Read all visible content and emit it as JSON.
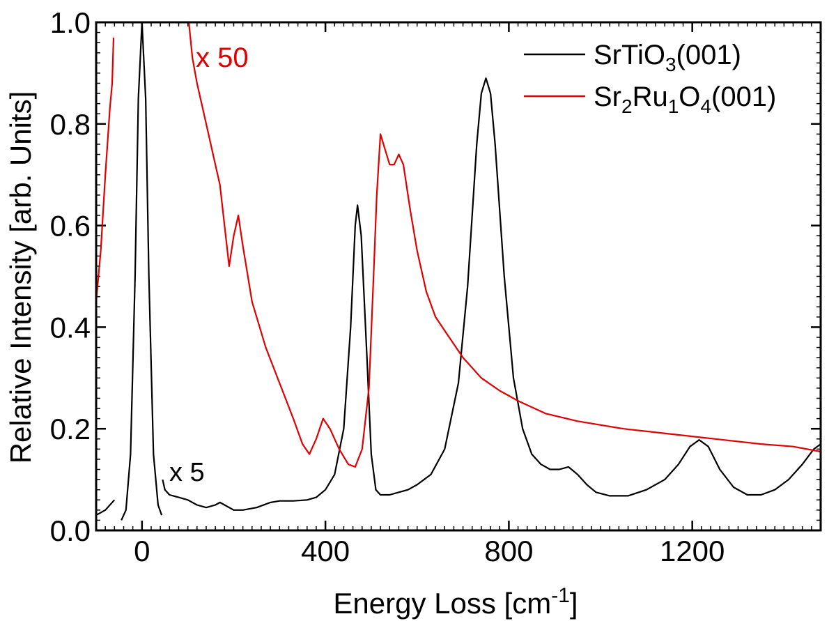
{
  "chart_data": {
    "type": "line",
    "xlabel_main": "Energy Loss [cm",
    "xlabel_sup": "-1",
    "xlabel_end": "]",
    "ylabel": "Relative Intensity [arb. Units]",
    "xlim": [
      -100,
      1480
    ],
    "ylim": [
      0.0,
      1.0
    ],
    "x_ticks": [
      0,
      400,
      800,
      1200
    ],
    "x_tick_labels": [
      "0",
      "400",
      "800",
      "1200"
    ],
    "y_ticks": [
      0.0,
      0.2,
      0.4,
      0.6,
      0.8,
      1.0
    ],
    "y_tick_labels": [
      "0.0",
      "0.2",
      "0.4",
      "0.6",
      "0.8",
      "1.0"
    ],
    "legend_position": "top-right",
    "colors": {
      "black": "#000000",
      "red": "#e00000"
    },
    "annotations": [
      {
        "text": "x 50",
        "color": "#e00000"
      },
      {
        "text": "x 5",
        "color": "#000000"
      }
    ],
    "series": [
      {
        "name": "SrTiO3(001)",
        "legend_parts": [
          "SrTiO",
          "3",
          "(001)"
        ],
        "color": "#000000",
        "segments": [
          [
            [
              -100,
              0.03
            ],
            [
              -80,
              0.04
            ],
            [
              -60,
              0.06
            ]
          ],
          [
            [
              -45,
              0.02
            ],
            [
              -35,
              0.04
            ],
            [
              -25,
              0.15
            ],
            [
              -15,
              0.5
            ],
            [
              -8,
              0.85
            ],
            [
              0,
              1.0
            ],
            [
              8,
              0.85
            ],
            [
              15,
              0.5
            ],
            [
              25,
              0.15
            ],
            [
              35,
              0.05
            ],
            [
              43,
              0.03
            ]
          ],
          [
            [
              45,
              0.1
            ],
            [
              50,
              0.08
            ],
            [
              60,
              0.07
            ],
            [
              80,
              0.065
            ],
            [
              100,
              0.06
            ],
            [
              120,
              0.05
            ],
            [
              140,
              0.045
            ],
            [
              160,
              0.05
            ],
            [
              170,
              0.055
            ],
            [
              180,
              0.05
            ],
            [
              200,
              0.04
            ],
            [
              220,
              0.04
            ],
            [
              250,
              0.045
            ],
            [
              280,
              0.055
            ],
            [
              300,
              0.058
            ],
            [
              330,
              0.058
            ],
            [
              360,
              0.06
            ],
            [
              380,
              0.065
            ],
            [
              400,
              0.08
            ],
            [
              420,
              0.11
            ],
            [
              440,
              0.2
            ],
            [
              455,
              0.4
            ],
            [
              465,
              0.6
            ],
            [
              470,
              0.64
            ],
            [
              478,
              0.58
            ],
            [
              490,
              0.35
            ],
            [
              500,
              0.15
            ],
            [
              510,
              0.08
            ],
            [
              520,
              0.07
            ],
            [
              540,
              0.07
            ],
            [
              560,
              0.075
            ],
            [
              580,
              0.08
            ],
            [
              600,
              0.09
            ],
            [
              630,
              0.11
            ],
            [
              660,
              0.16
            ],
            [
              690,
              0.29
            ],
            [
              710,
              0.48
            ],
            [
              730,
              0.76
            ],
            [
              740,
              0.86
            ],
            [
              750,
              0.89
            ],
            [
              760,
              0.86
            ],
            [
              770,
              0.76
            ],
            [
              790,
              0.5
            ],
            [
              810,
              0.3
            ],
            [
              830,
              0.2
            ],
            [
              850,
              0.15
            ],
            [
              870,
              0.13
            ],
            [
              890,
              0.12
            ],
            [
              910,
              0.12
            ],
            [
              930,
              0.125
            ],
            [
              950,
              0.11
            ],
            [
              970,
              0.09
            ],
            [
              990,
              0.075
            ],
            [
              1020,
              0.068
            ],
            [
              1060,
              0.068
            ],
            [
              1100,
              0.08
            ],
            [
              1140,
              0.1
            ],
            [
              1170,
              0.13
            ],
            [
              1195,
              0.165
            ],
            [
              1215,
              0.178
            ],
            [
              1235,
              0.165
            ],
            [
              1260,
              0.12
            ],
            [
              1290,
              0.085
            ],
            [
              1320,
              0.07
            ],
            [
              1350,
              0.07
            ],
            [
              1380,
              0.08
            ],
            [
              1410,
              0.1
            ],
            [
              1440,
              0.13
            ],
            [
              1465,
              0.16
            ],
            [
              1480,
              0.17
            ]
          ]
        ]
      },
      {
        "name": "Sr2Ru1O4(001)",
        "legend_parts": [
          "Sr",
          "2",
          "Ru",
          "1",
          "O",
          "4",
          "(001)"
        ],
        "color": "#e00000",
        "segments": [
          [
            [
              -100,
              0.45
            ],
            [
              -90,
              0.55
            ],
            [
              -80,
              0.7
            ],
            [
              -70,
              0.83
            ],
            [
              -65,
              0.88
            ],
            [
              -62,
              0.97
            ]
          ],
          [
            [
              100,
              1.02
            ],
            [
              110,
              0.93
            ],
            [
              120,
              0.88
            ],
            [
              140,
              0.8
            ],
            [
              160,
              0.72
            ],
            [
              170,
              0.68
            ],
            [
              180,
              0.6
            ],
            [
              190,
              0.52
            ],
            [
              200,
              0.58
            ],
            [
              210,
              0.62
            ],
            [
              220,
              0.56
            ],
            [
              240,
              0.45
            ],
            [
              270,
              0.36
            ],
            [
              300,
              0.29
            ],
            [
              330,
              0.22
            ],
            [
              350,
              0.17
            ],
            [
              365,
              0.15
            ],
            [
              380,
              0.18
            ],
            [
              395,
              0.22
            ],
            [
              410,
              0.2
            ],
            [
              430,
              0.16
            ],
            [
              450,
              0.13
            ],
            [
              465,
              0.125
            ],
            [
              480,
              0.16
            ],
            [
              495,
              0.28
            ],
            [
              505,
              0.5
            ],
            [
              512,
              0.66
            ],
            [
              520,
              0.78
            ],
            [
              530,
              0.75
            ],
            [
              540,
              0.72
            ],
            [
              550,
              0.72
            ],
            [
              560,
              0.74
            ],
            [
              570,
              0.72
            ],
            [
              585,
              0.63
            ],
            [
              600,
              0.55
            ],
            [
              620,
              0.47
            ],
            [
              640,
              0.42
            ],
            [
              670,
              0.38
            ],
            [
              700,
              0.34
            ],
            [
              740,
              0.3
            ],
            [
              780,
              0.275
            ],
            [
              820,
              0.255
            ],
            [
              880,
              0.23
            ],
            [
              950,
              0.215
            ],
            [
              1050,
              0.2
            ],
            [
              1150,
              0.19
            ],
            [
              1250,
              0.18
            ],
            [
              1350,
              0.17
            ],
            [
              1420,
              0.165
            ],
            [
              1480,
              0.155
            ]
          ]
        ]
      }
    ]
  }
}
